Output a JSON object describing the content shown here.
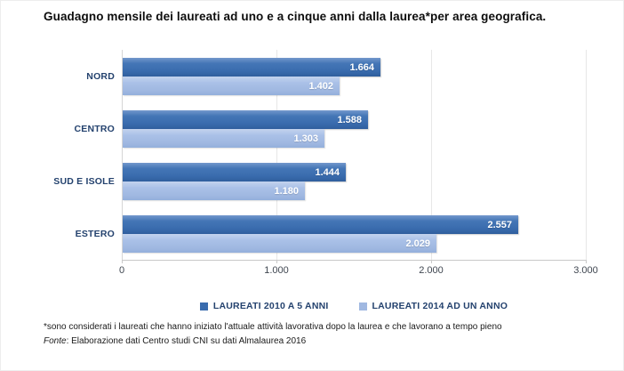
{
  "title": "Guadagno mensile dei laureati ad uno e a cinque anni dalla laurea*per area geografica.",
  "chart_data": {
    "type": "bar",
    "orientation": "horizontal",
    "title": "Guadagno mensile dei laureati ad uno e a cinque anni dalla laurea*per area geografica.",
    "categories": [
      "NORD",
      "CENTRO",
      "SUD E ISOLE",
      "ESTERO"
    ],
    "series": [
      {
        "name": "LAUREATI 2010 A 5 ANNI",
        "color": "#3a6cae",
        "values": [
          1664,
          1588,
          1444,
          2557
        ],
        "labels": [
          "1.664",
          "1.588",
          "1.444",
          "2.557"
        ]
      },
      {
        "name": "LAUREATI 2014 AD UN ANNO",
        "color": "#a0b8e1",
        "values": [
          1402,
          1303,
          1180,
          2029
        ],
        "labels": [
          "1.402",
          "1.303",
          "1.180",
          "2.029"
        ]
      }
    ],
    "x_ticks": [
      "0",
      "1.000",
      "2.000",
      "3.000"
    ],
    "x_tick_values": [
      0,
      1000,
      2000,
      3000
    ],
    "xlim": [
      0,
      3000
    ],
    "grid": true,
    "legend_position": "bottom"
  },
  "footnotes": {
    "note": "*sono considerati i laureati che hanno iniziato l'attuale attività lavorativa dopo la laurea e che lavorano a tempo pieno",
    "source_prefix": "Fonte",
    "source_rest": ": Elaborazione dati Centro studi CNI su dati Almalaurea 2016"
  }
}
